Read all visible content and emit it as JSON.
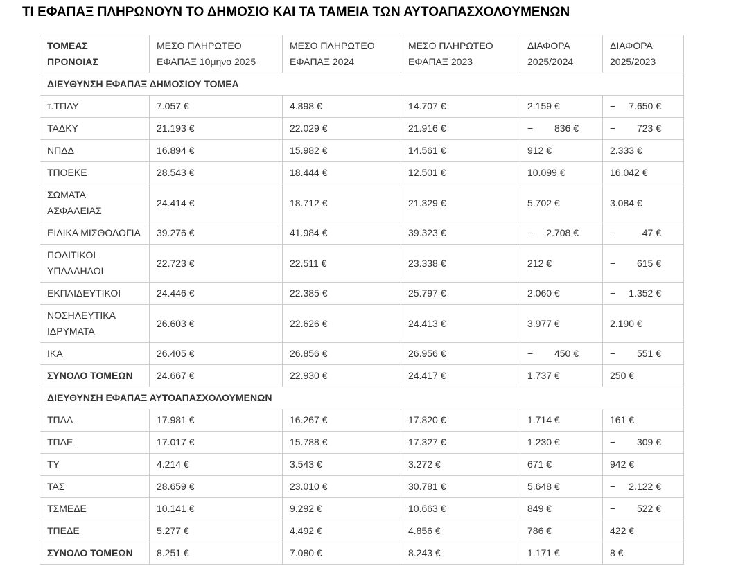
{
  "page": {
    "title": "ΤΙ ΕΦΑΠΑΞ ΠΛΗΡΩΝΟΥΝ ΤΟ ΔΗΜΟΣΙΟ ΚΑΙ ΤΑ ΤΑΜΕΙΑ ΤΩΝ ΑΥΤΟΑΠΑΣΧΟΛΟΥΜΕΝΩΝ"
  },
  "colors": {
    "table_border": "#cccccc",
    "body_text": "#333333",
    "title_text": "#000000",
    "background": "#ffffff"
  },
  "table": {
    "columns": [
      {
        "label": "ΤΟΜΕΑΣ\nΠΡΟΝΟΙΑΣ"
      },
      {
        "label": "ΜΕΣΟ ΠΛΗΡΩΤΕΟ\nΕΦΑΠΑΞ 10μηνο 2025"
      },
      {
        "label": "ΜΕΣΟ ΠΛΗΡΩΤΕΟ\nΕΦΑΠΑΞ 2024"
      },
      {
        "label": "ΜΕΣΟ ΠΛΗΡΩΤΕΟ\nΕΦΑΠΑΞ 2023"
      },
      {
        "label": "ΔΙΑΦΟΡΑ\n2025/2024"
      },
      {
        "label": "ΔΙΑΦΟΡΑ\n2025/2023"
      }
    ],
    "sections": [
      {
        "header": "ΔΙΕΥΘΥΝΣΗ ΕΦΑΠΑΞ ΔΗΜΟΣΙΟΥ ΤΟΜΕΑ",
        "rows": [
          {
            "label": "τ.ΤΠΔΥ",
            "values": [
              {
                "amount": "7.057 €"
              },
              {
                "amount": "4.898 €"
              },
              {
                "amount": "14.707 €"
              },
              {
                "amount": "2.159 €"
              },
              {
                "sign": "−",
                "amount": "7.650 €"
              }
            ]
          },
          {
            "label": "ΤΑΔΚΥ",
            "values": [
              {
                "amount": "21.193 €"
              },
              {
                "amount": "22.029 €"
              },
              {
                "amount": "21.916 €"
              },
              {
                "sign": "−",
                "amount": "836 €"
              },
              {
                "sign": "−",
                "amount": "723 €"
              }
            ]
          },
          {
            "label": "ΝΠΔΔ",
            "values": [
              {
                "amount": "16.894 €"
              },
              {
                "amount": "15.982 €"
              },
              {
                "amount": "14.561 €"
              },
              {
                "amount": "912 €"
              },
              {
                "amount": "2.333 €"
              }
            ]
          },
          {
            "label": "ΤΠΟΕΚΕ",
            "values": [
              {
                "amount": "28.543 €"
              },
              {
                "amount": "18.444 €"
              },
              {
                "amount": "12.501 €"
              },
              {
                "amount": "10.099 €"
              },
              {
                "amount": "16.042 €"
              }
            ]
          },
          {
            "label": "ΣΩΜΑΤΑ\nΑΣΦΑΛΕΙΑΣ",
            "values": [
              {
                "amount": "24.414 €"
              },
              {
                "amount": "18.712 €"
              },
              {
                "amount": "21.329 €"
              },
              {
                "amount": "5.702 €"
              },
              {
                "amount": "3.084 €"
              }
            ]
          },
          {
            "label": "ΕΙΔΙΚΑ ΜΙΣΘΟΛΟΓΙΑ",
            "values": [
              {
                "amount": "39.276 €"
              },
              {
                "amount": "41.984 €"
              },
              {
                "amount": "39.323 €"
              },
              {
                "sign": "−",
                "amount": "2.708 €"
              },
              {
                "sign": "−",
                "amount": "47 €"
              }
            ]
          },
          {
            "label": "ΠΟΛΙΤΙΚΟΙ\nΥΠΑΛΛΗΛΟΙ",
            "values": [
              {
                "amount": "22.723 €"
              },
              {
                "amount": "22.511 €"
              },
              {
                "amount": "23.338 €"
              },
              {
                "amount": "212 €"
              },
              {
                "sign": "−",
                "amount": "615 €"
              }
            ]
          },
          {
            "label": "ΕΚΠΑΙΔΕΥΤΙΚΟΙ",
            "values": [
              {
                "amount": "24.446 €"
              },
              {
                "amount": "22.385 €"
              },
              {
                "amount": "25.797 €"
              },
              {
                "amount": "2.060 €"
              },
              {
                "sign": "−",
                "amount": "1.352 €"
              }
            ]
          },
          {
            "label": "ΝΟΣΗΛΕΥΤΙΚΑ\nΙΔΡΥΜΑΤΑ",
            "values": [
              {
                "amount": "26.603 €"
              },
              {
                "amount": "22.626 €"
              },
              {
                "amount": "24.413 €"
              },
              {
                "amount": "3.977 €"
              },
              {
                "amount": "2.190 €"
              }
            ]
          },
          {
            "label": "ΙΚΑ",
            "values": [
              {
                "amount": "26.405 €"
              },
              {
                "amount": "26.856 €"
              },
              {
                "amount": "26.956 €"
              },
              {
                "sign": "−",
                "amount": "450 €"
              },
              {
                "sign": "−",
                "amount": "551 €"
              }
            ]
          },
          {
            "label": "ΣΥΝΟΛΟ ΤΟΜΕΩΝ",
            "total": true,
            "values": [
              {
                "amount": "24.667 €"
              },
              {
                "amount": "22.930 €"
              },
              {
                "amount": "24.417 €"
              },
              {
                "amount": "1.737 €"
              },
              {
                "amount": "250 €"
              }
            ]
          }
        ]
      },
      {
        "header": "ΔΙΕΥΘΥΝΣΗ ΕΦΑΠΑΞ ΑΥΤΟΑΠΑΣΧΟΛΟΥΜΕΝΩΝ",
        "rows": [
          {
            "label": "ΤΠΔΑ",
            "values": [
              {
                "amount": "17.981 €"
              },
              {
                "amount": "16.267 €"
              },
              {
                "amount": "17.820 €"
              },
              {
                "amount": "1.714 €"
              },
              {
                "amount": "161 €"
              }
            ]
          },
          {
            "label": "ΤΠΔΕ",
            "values": [
              {
                "amount": "17.017 €"
              },
              {
                "amount": "15.788 €"
              },
              {
                "amount": "17.327 €"
              },
              {
                "amount": "1.230 €"
              },
              {
                "sign": "−",
                "amount": "309 €"
              }
            ]
          },
          {
            "label": "ΤΥ",
            "values": [
              {
                "amount": "4.214 €"
              },
              {
                "amount": "3.543 €"
              },
              {
                "amount": "3.272 €"
              },
              {
                "amount": "671 €"
              },
              {
                "amount": "942 €"
              }
            ]
          },
          {
            "label": "ΤΑΣ",
            "values": [
              {
                "amount": "28.659 €"
              },
              {
                "amount": "23.010 €"
              },
              {
                "amount": "30.781 €"
              },
              {
                "amount": "5.648 €"
              },
              {
                "sign": "−",
                "amount": "2.122 €"
              }
            ]
          },
          {
            "label": "ΤΣΜΕΔΕ",
            "values": [
              {
                "amount": "10.141 €"
              },
              {
                "amount": "9.292 €"
              },
              {
                "amount": "10.663 €"
              },
              {
                "amount": "849 €"
              },
              {
                "sign": "−",
                "amount": "522 €"
              }
            ]
          },
          {
            "label": "ΤΠΕΔΕ",
            "values": [
              {
                "amount": "5.277 €"
              },
              {
                "amount": "4.492 €"
              },
              {
                "amount": "4.856 €"
              },
              {
                "amount": "786 €"
              },
              {
                "amount": "422 €"
              }
            ]
          },
          {
            "label": "ΣΥΝΟΛΟ ΤΟΜΕΩΝ",
            "total": true,
            "values": [
              {
                "amount": "8.251 €"
              },
              {
                "amount": "7.080 €"
              },
              {
                "amount": "8.243 €"
              },
              {
                "amount": "1.171 €"
              },
              {
                "amount": "8 €"
              }
            ]
          }
        ]
      }
    ]
  }
}
